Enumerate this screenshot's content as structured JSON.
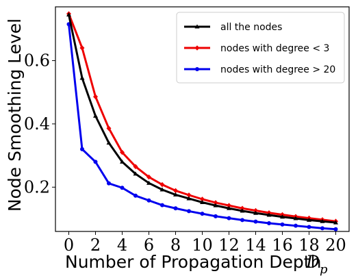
{
  "chart_data": {
    "type": "line",
    "xlabel": "Number of Propagation Depth",
    "xlabel_math": "D",
    "xlabel_math_sub": "p",
    "ylabel": "Node Smoothing Level",
    "xlim": [
      -1,
      21
    ],
    "ylim": [
      0.06,
      0.77
    ],
    "xticks": [
      0,
      2,
      4,
      6,
      8,
      10,
      12,
      14,
      16,
      18,
      20
    ],
    "yticks": [
      0.2,
      0.4,
      0.6
    ],
    "ytick_labels": [
      "0.2",
      "0.4",
      "0.6"
    ],
    "legend_position": "top-right",
    "x": [
      0,
      1,
      2,
      3,
      4,
      5,
      6,
      7,
      8,
      9,
      10,
      11,
      12,
      13,
      14,
      15,
      16,
      17,
      18,
      19,
      20
    ],
    "series": [
      {
        "name": "all the nodes",
        "color": "#000000",
        "marker": "triangle",
        "values": [
          0.745,
          0.545,
          0.425,
          0.34,
          0.28,
          0.242,
          0.213,
          0.192,
          0.176,
          0.164,
          0.152,
          0.142,
          0.133,
          0.125,
          0.118,
          0.112,
          0.106,
          0.101,
          0.096,
          0.092,
          0.088
        ]
      },
      {
        "name": "nodes with degree < 3",
        "color": "#ee0000",
        "marker": "diamond",
        "values": [
          0.748,
          0.64,
          0.486,
          0.386,
          0.31,
          0.265,
          0.232,
          0.208,
          0.189,
          0.175,
          0.162,
          0.151,
          0.142,
          0.133,
          0.126,
          0.119,
          0.113,
          0.107,
          0.102,
          0.097,
          0.092
        ]
      },
      {
        "name": "nodes with degree > 20",
        "color": "#0000ee",
        "marker": "circle",
        "values": [
          0.715,
          0.32,
          0.28,
          0.212,
          0.198,
          0.173,
          0.158,
          0.143,
          0.133,
          0.124,
          0.116,
          0.108,
          0.102,
          0.096,
          0.091,
          0.086,
          0.082,
          0.078,
          0.074,
          0.07,
          0.067
        ]
      }
    ]
  }
}
